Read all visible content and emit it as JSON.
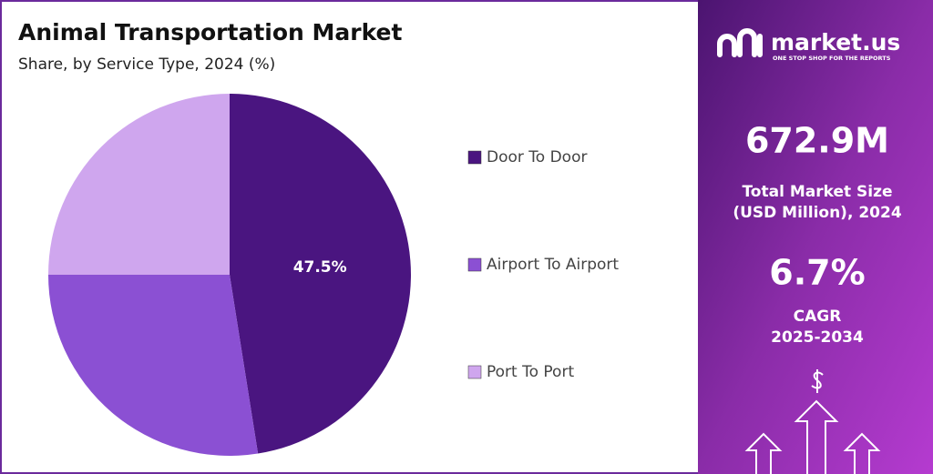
{
  "chart_data": {
    "type": "pie",
    "title": "Animal Transportation Market",
    "subtitle": "Share, by Service Type, 2024 (%)",
    "categories": [
      "Door To Door",
      "Airport To Airport",
      "Port To Port"
    ],
    "values": [
      47.5,
      27.5,
      25
    ],
    "value_labels": [
      "47.5%",
      null,
      null
    ],
    "colors": [
      "#4a1580",
      "#8b50d3",
      "#cfa6ee"
    ],
    "legend": "right"
  },
  "sidebar": {
    "brand": "market.us",
    "tagline": "ONE STOP SHOP FOR THE REPORTS",
    "market_size": "672.9M",
    "market_size_label": [
      "Total Market Size",
      "(USD Million), 2024"
    ],
    "cagr": "6.7%",
    "cagr_label": [
      "CAGR",
      "2025-2034"
    ]
  }
}
